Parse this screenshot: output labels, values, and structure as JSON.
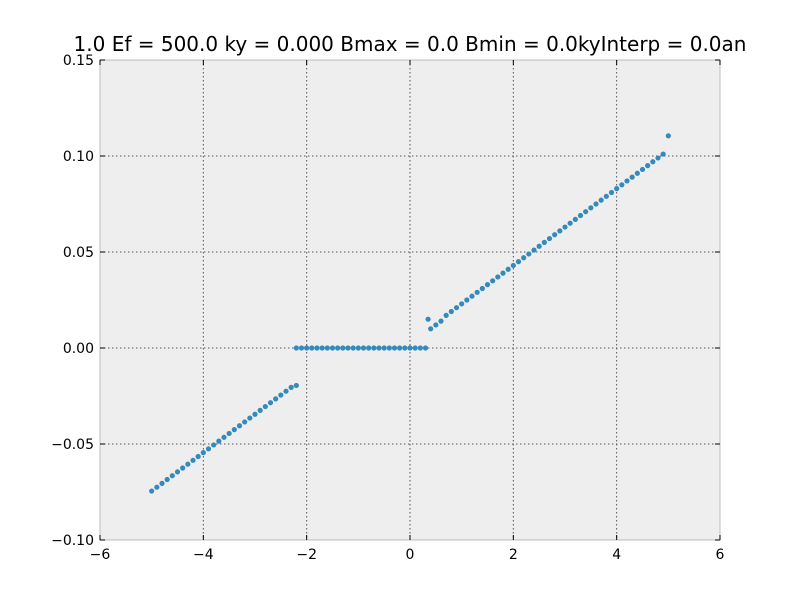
{
  "chart_data": {
    "type": "scatter",
    "title": "1.0 Ef = 500.0 ky = 0.000 Bmax = 0.0 Bmin = 0.0kyInterp = 0.0an",
    "xlabel": "",
    "ylabel": "",
    "xlim": [
      -6,
      6
    ],
    "ylim": [
      -0.1,
      0.15
    ],
    "x_ticks": [
      -6,
      -4,
      -2,
      0,
      2,
      4,
      6
    ],
    "x_tick_labels": [
      "−6",
      "−4",
      "−2",
      "0",
      "2",
      "4",
      "6"
    ],
    "y_ticks": [
      -0.1,
      -0.05,
      0.0,
      0.05,
      0.1,
      0.15
    ],
    "y_tick_labels": [
      "−0.10",
      "−0.05",
      "0.00",
      "0.05",
      "0.10",
      "0.15"
    ],
    "grid": true,
    "legend": "none",
    "colors": {
      "points": "#348abd",
      "plot_background": "#eeeeee",
      "figure_background": "#ffffff"
    },
    "series": [
      {
        "x": [
          -5.0,
          -4.9,
          -4.8,
          -4.7,
          -4.6,
          -4.5,
          -4.4,
          -4.3,
          -4.2,
          -4.1,
          -4.0,
          -3.9,
          -3.8,
          -3.7,
          -3.6,
          -3.5,
          -3.4,
          -3.3,
          -3.2,
          -3.1,
          -3.0,
          -2.9,
          -2.8,
          -2.7,
          -2.6,
          -2.5,
          -2.4,
          -2.3,
          -2.2,
          -2.1,
          -2.0,
          -1.9,
          -1.8,
          -1.7,
          -1.6,
          -1.5,
          -1.4,
          -1.3,
          -1.2,
          -1.1,
          -1.0,
          -0.9,
          -0.8,
          -0.7,
          -0.6,
          -0.5,
          -0.4,
          -0.3,
          -0.2,
          -0.1,
          0.0,
          0.1,
          0.2,
          0.3,
          0.4,
          0.5,
          0.6,
          0.7,
          0.8,
          0.9,
          1.0,
          1.1,
          1.2,
          1.3,
          1.4,
          1.5,
          1.6,
          1.7,
          1.8,
          1.9,
          2.0,
          2.1,
          2.2,
          2.3,
          2.4,
          2.5,
          2.6,
          2.7,
          2.8,
          2.9,
          3.0,
          3.1,
          3.2,
          3.3,
          3.4,
          3.5,
          3.6,
          3.7,
          3.8,
          3.9,
          4.0,
          4.1,
          4.2,
          4.3,
          4.4,
          4.5,
          4.6,
          4.7,
          4.8,
          4.9,
          5.0,
          -2.2,
          0.35
        ],
        "y": [
          -0.0745,
          -0.0725,
          -0.0705,
          -0.0685,
          -0.0665,
          -0.0645,
          -0.0625,
          -0.0605,
          -0.0585,
          -0.0565,
          -0.0545,
          -0.0525,
          -0.0505,
          -0.0485,
          -0.0465,
          -0.0445,
          -0.0425,
          -0.0405,
          -0.0385,
          -0.0365,
          -0.0345,
          -0.0325,
          -0.0305,
          -0.0285,
          -0.0265,
          -0.0245,
          -0.0225,
          -0.0205,
          0.0,
          0.0,
          0.0,
          0.0,
          0.0,
          0.0,
          0.0,
          0.0,
          0.0,
          0.0,
          0.0,
          0.0,
          0.0,
          0.0,
          0.0,
          0.0,
          0.0,
          0.0,
          0.0,
          0.0,
          0.0,
          0.0,
          0.0,
          0.0,
          0.0,
          0.0,
          0.01,
          0.012,
          0.014,
          0.017,
          0.019,
          0.021,
          0.023,
          0.025,
          0.027,
          0.029,
          0.031,
          0.033,
          0.035,
          0.037,
          0.039,
          0.041,
          0.043,
          0.045,
          0.047,
          0.049,
          0.051,
          0.053,
          0.055,
          0.057,
          0.059,
          0.061,
          0.063,
          0.065,
          0.067,
          0.069,
          0.071,
          0.073,
          0.075,
          0.077,
          0.079,
          0.081,
          0.083,
          0.085,
          0.087,
          0.089,
          0.091,
          0.093,
          0.095,
          0.097,
          0.099,
          0.101,
          0.1105,
          -0.0195,
          0.015
        ]
      }
    ]
  }
}
